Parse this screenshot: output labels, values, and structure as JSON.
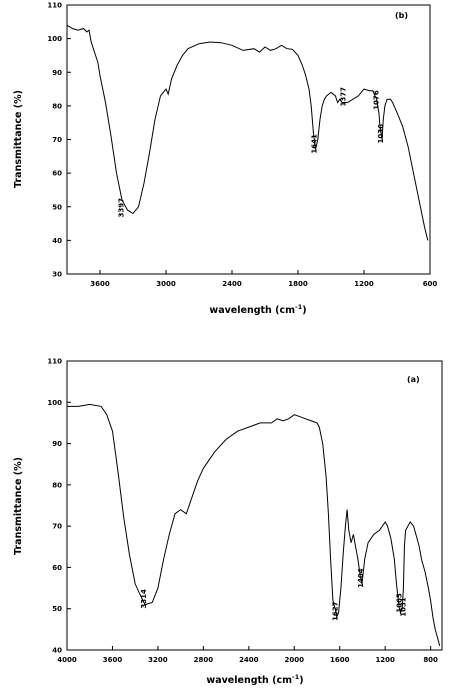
{
  "chart_data": [
    {
      "panel_label": "(b)",
      "type": "line",
      "xlabel": "wavelength (cm",
      "xlabel_sup": "-1",
      "xlabel_close": ")",
      "ylabel": "Transmittance (%)",
      "xlim": [
        3900,
        600
      ],
      "ylim": [
        30,
        110
      ],
      "xticks": [
        3600,
        3000,
        2400,
        1800,
        1200,
        600
      ],
      "xtick_labels": [
        "3600",
        "3000",
        "2400",
        "1800",
        "1200",
        "600"
      ],
      "yticks": [
        30,
        40,
        50,
        60,
        70,
        80,
        90,
        100,
        110
      ],
      "ytick_labels": [
        "30",
        "40",
        "50",
        "60",
        "70",
        "80",
        "90",
        "100",
        "110"
      ],
      "annotations": [
        {
          "text": "3397",
          "x": 3397,
          "y": 48
        },
        {
          "text": "1641",
          "x": 1641,
          "y": 67
        },
        {
          "text": "1377",
          "x": 1377,
          "y": 81
        },
        {
          "text": "1076",
          "x": 1076,
          "y": 80
        },
        {
          "text": "1036",
          "x": 1036,
          "y": 70
        }
      ],
      "series": [
        {
          "x": [
            3900,
            3850,
            3800,
            3750,
            3720,
            3700,
            3680,
            3650,
            3620,
            3600,
            3550,
            3500,
            3450,
            3400,
            3350,
            3300,
            3250,
            3200,
            3150,
            3100,
            3050,
            3000,
            2980,
            2950,
            2900,
            2850,
            2800,
            2700,
            2600,
            2500,
            2400,
            2300,
            2200,
            2150,
            2100,
            2050,
            2000,
            1950,
            1900,
            1850,
            1800,
            1760,
            1730,
            1700,
            1680,
            1660,
            1641,
            1620,
            1600,
            1580,
            1560,
            1540,
            1500,
            1460,
            1440,
            1420,
            1400,
            1377,
            1350,
            1300,
            1250,
            1200,
            1150,
            1120,
            1100,
            1085,
            1076,
            1065,
            1055,
            1045,
            1036,
            1025,
            1010,
            990,
            960,
            940,
            900,
            850,
            800,
            750,
            700,
            650,
            620
          ],
          "y": [
            104,
            103,
            102.5,
            103,
            102,
            102.5,
            99,
            96,
            93,
            89,
            81,
            71,
            60,
            52,
            49,
            48,
            50,
            57,
            66,
            76,
            83,
            85,
            83.5,
            88,
            92,
            95,
            97,
            98.5,
            99,
            98.8,
            98,
            96.5,
            97,
            96,
            97.5,
            96.5,
            97,
            98,
            97,
            96.8,
            95,
            92,
            89,
            85,
            80,
            72,
            67,
            70,
            76,
            80,
            82,
            83,
            84,
            83,
            81,
            82,
            81,
            81,
            81,
            82,
            83,
            85,
            84.5,
            84.5,
            83,
            82,
            80,
            78,
            74,
            72,
            70,
            76,
            80,
            82,
            82,
            81,
            78,
            74,
            68,
            60,
            52,
            44,
            40
          ]
        }
      ]
    },
    {
      "panel_label": "(a)",
      "type": "line",
      "xlabel": "wavelength (cm",
      "xlabel_sup": "-1",
      "xlabel_close": ")",
      "ylabel": "Transmittance (%)",
      "xlim": [
        4000,
        700
      ],
      "ylim": [
        40,
        110
      ],
      "xticks": [
        4000,
        3600,
        3200,
        2800,
        2400,
        2000,
        1600,
        1200,
        800
      ],
      "xtick_labels": [
        "4000",
        "3600",
        "3200",
        "2800",
        "2400",
        "2000",
        "1600",
        "1200",
        "800"
      ],
      "yticks": [
        40,
        50,
        60,
        70,
        80,
        90,
        100,
        110
      ],
      "ytick_labels": [
        "40",
        "50",
        "60",
        "70",
        "80",
        "90",
        "100",
        "110"
      ],
      "annotations": [
        {
          "text": "3314",
          "x": 3314,
          "y": 51
        },
        {
          "text": "1627",
          "x": 1627,
          "y": 48
        },
        {
          "text": "1404",
          "x": 1404,
          "y": 56
        },
        {
          "text": "1065",
          "x": 1065,
          "y": 50
        },
        {
          "text": "1031",
          "x": 1031,
          "y": 49
        }
      ],
      "series": [
        {
          "x": [
            4000,
            3900,
            3800,
            3700,
            3650,
            3600,
            3550,
            3500,
            3450,
            3400,
            3350,
            3314,
            3250,
            3200,
            3150,
            3100,
            3050,
            3000,
            2950,
            2900,
            2850,
            2800,
            2700,
            2600,
            2500,
            2400,
            2300,
            2200,
            2150,
            2100,
            2050,
            2000,
            1950,
            1900,
            1850,
            1800,
            1780,
            1750,
            1720,
            1700,
            1680,
            1660,
            1640,
            1627,
            1610,
            1590,
            1570,
            1550,
            1535,
            1520,
            1500,
            1480,
            1460,
            1440,
            1420,
            1404,
            1380,
            1350,
            1300,
            1250,
            1200,
            1180,
            1150,
            1120,
            1100,
            1085,
            1075,
            1065,
            1050,
            1040,
            1031,
            1020,
            1000,
            980,
            950,
            930,
            900,
            880,
            850,
            820,
            800,
            780,
            760,
            740,
            720
          ],
          "y": [
            99,
            99,
            99.5,
            99,
            97,
            93,
            83,
            72,
            63,
            56,
            53,
            51,
            51.5,
            55,
            62,
            68,
            73,
            74,
            73,
            77,
            81,
            84,
            88,
            91,
            93,
            94,
            95,
            95,
            96,
            95.5,
            96,
            97,
            96.5,
            96,
            95.5,
            95,
            94,
            90,
            82,
            73,
            62,
            52,
            50,
            48,
            49,
            55,
            63,
            70,
            74,
            69,
            66,
            68,
            65,
            62,
            58,
            56,
            62,
            66,
            68,
            69,
            71,
            70,
            67,
            62,
            56,
            52,
            50,
            49,
            50,
            55,
            65,
            69,
            70,
            71,
            70,
            68,
            65,
            62,
            59,
            55,
            52,
            48,
            45,
            43,
            41
          ]
        }
      ]
    }
  ]
}
